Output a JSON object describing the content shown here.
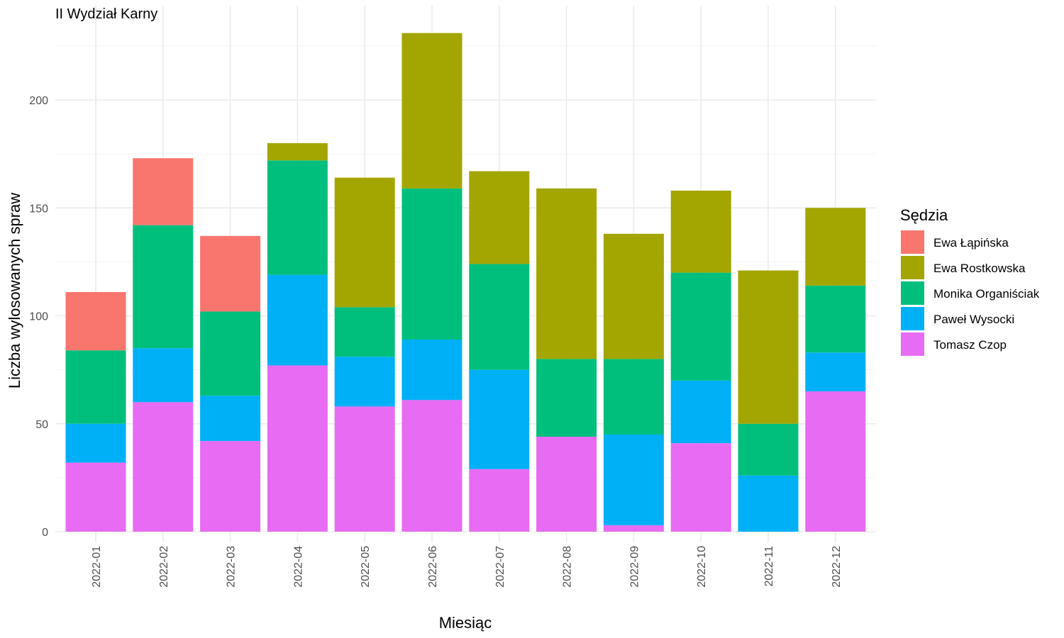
{
  "chart_data": {
    "type": "bar",
    "stacked": true,
    "title": "II Wydział Karny",
    "xlabel": "Miesiąc",
    "ylabel": "Liczba wylosowanych spraw",
    "ylim": [
      0,
      235
    ],
    "yticks": [
      0,
      50,
      100,
      150,
      200
    ],
    "grid": true,
    "legend_position": "right",
    "legend_title": "Sędzia",
    "categories": [
      "2022-01",
      "2022-02",
      "2022-03",
      "2022-04",
      "2022-05",
      "2022-06",
      "2022-07",
      "2022-08",
      "2022-09",
      "2022-10",
      "2022-11",
      "2022-12"
    ],
    "series": [
      {
        "name": "Tomasz Czop",
        "color": "#E76BF3",
        "values": [
          32,
          60,
          42,
          77,
          58,
          61,
          29,
          44,
          3,
          41,
          0,
          65
        ]
      },
      {
        "name": "Paweł Wysocki",
        "color": "#00B0F6",
        "values": [
          18,
          25,
          21,
          42,
          23,
          28,
          46,
          0,
          42,
          29,
          26,
          18
        ]
      },
      {
        "name": "Monika Organiściak",
        "color": "#00BF7D",
        "values": [
          34,
          57,
          39,
          53,
          23,
          70,
          49,
          36,
          35,
          50,
          24,
          31
        ]
      },
      {
        "name": "Ewa Rostkowska",
        "color": "#A3A500",
        "values": [
          0,
          0,
          0,
          8,
          60,
          72,
          43,
          79,
          58,
          38,
          71,
          36
        ]
      },
      {
        "name": "Ewa Łąpińska",
        "color": "#F8766D",
        "values": [
          27,
          31,
          35,
          0,
          0,
          0,
          0,
          0,
          0,
          0,
          0,
          0
        ]
      }
    ],
    "legend_order": [
      "Ewa Łąpińska",
      "Ewa Rostkowska",
      "Monika Organiściak",
      "Paweł Wysocki",
      "Tomasz Czop"
    ]
  }
}
